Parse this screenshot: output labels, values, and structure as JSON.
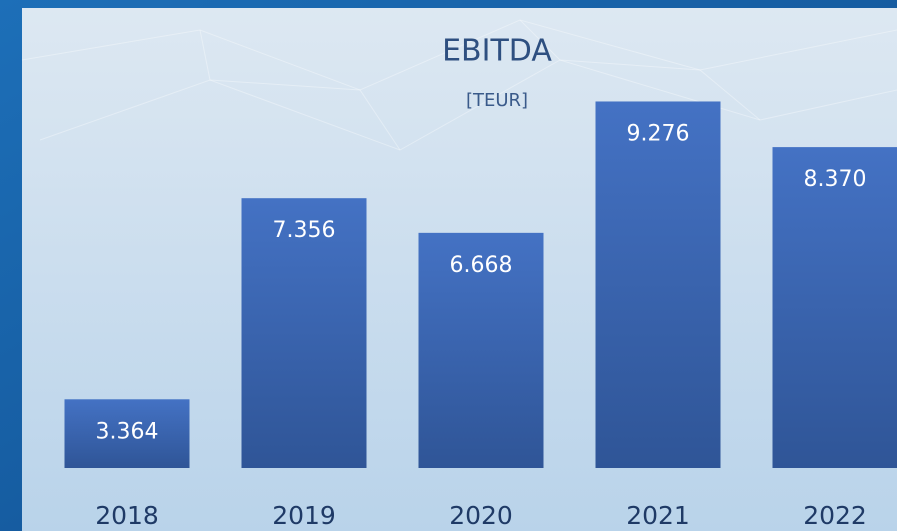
{
  "chart_data": {
    "type": "bar",
    "title": "EBITDA",
    "subtitle": "[TEUR]",
    "categories": [
      "2018",
      "2019",
      "2020",
      "2021",
      "2022"
    ],
    "values": [
      3364,
      7356,
      6668,
      9276,
      8370
    ],
    "value_labels": [
      "3.364",
      "7.356",
      "6.668",
      "9.276",
      "8.370"
    ],
    "color": "#4472c4",
    "ylim": [
      2000,
      10000
    ]
  }
}
